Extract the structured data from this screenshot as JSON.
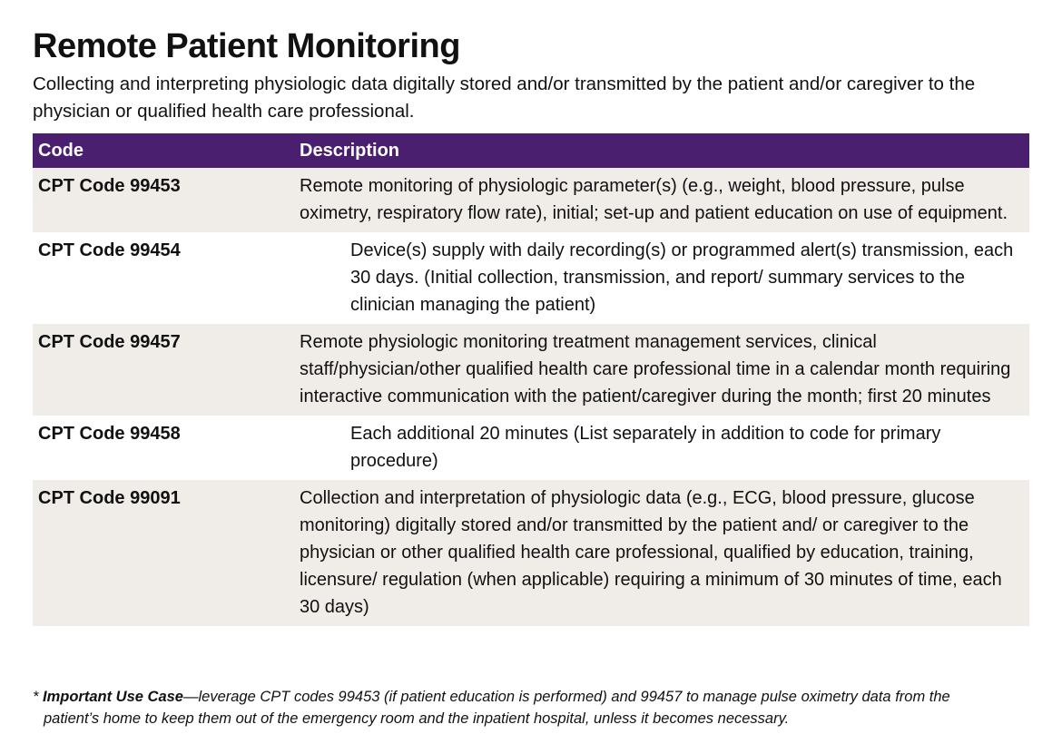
{
  "header": {
    "title": "Remote Patient Monitoring",
    "subtitle": "Collecting and interpreting physiologic data digitally stored and/or transmitted by the patient and/or caregiver to the physician or qualified health care professional."
  },
  "table": {
    "columns": [
      "Code",
      "Description"
    ],
    "rows": [
      [
        "CPT Code 99453",
        "Remote monitoring of physiologic parameter(s) (e.g., weight, blood pressure, pulse oximetry, respiratory flow rate), initial; set-up and patient education on use of equipment."
      ],
      [
        "CPT Code 99454",
        "Device(s) supply with daily recording(s) or programmed alert(s) transmission, each 30 days. (Initial collection, transmission, and report/ summary services to the clinician managing the patient)"
      ],
      [
        "CPT Code 99457",
        "Remote physiologic monitoring treatment management services, clinical staff/physician/other qualified health care professional time in a calendar month requiring interactive communication with the patient/caregiver during the month; first 20 minutes"
      ],
      [
        "CPT Code 99458",
        "Each additional 20 minutes (List separately in addition to code for primary procedure)"
      ],
      [
        "CPT Code 99091",
        "Collection and interpretation of physiologic data (e.g., ECG, blood pressure, glucose monitoring) digitally stored and/or transmitted by the patient and/ or caregiver to the physician or other qualified health care professional, qualified by education, training, licensure/ regulation (when applicable) requiring a minimum of 30 minutes of time, each 30 days)"
      ]
    ]
  },
  "footnote": {
    "marker": "*",
    "emphasis": "Important Use Case",
    "text": "—leverage CPT codes 99453 (if patient education is performed) and 99457 to manage pulse oximetry data from the patient’s home to keep them out of the emergency room and the inpatient hospital, unless it becomes necessary."
  }
}
